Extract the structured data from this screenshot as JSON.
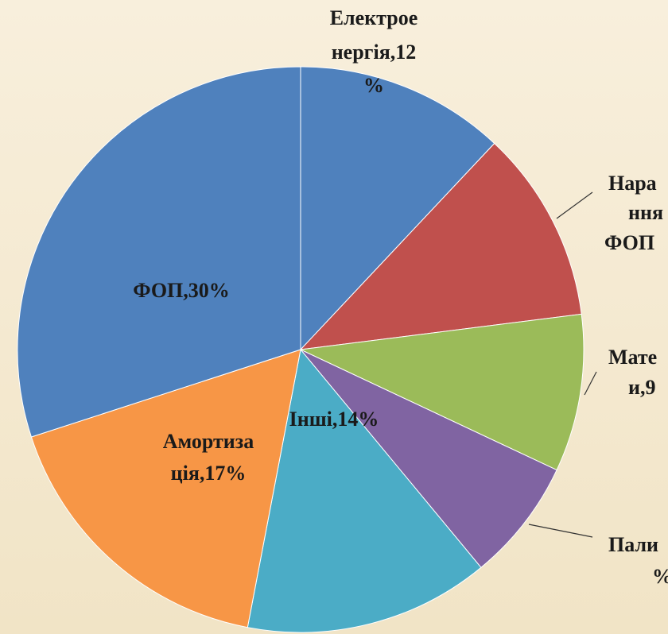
{
  "chart_data": {
    "type": "pie",
    "labels": [
      [
        "Електрое",
        "нергія,12",
        "%"
      ],
      [
        "Нара",
        "ння",
        "ФОП"
      ],
      [
        "Мате",
        "и,9"
      ],
      [
        "Пали",
        "%"
      ],
      [
        "Інші,14%"
      ],
      [
        "Амортиза",
        "ція,17%"
      ],
      [
        "ФОП,30%"
      ]
    ],
    "values": [
      12,
      11,
      9,
      7,
      14,
      17,
      30
    ],
    "colors": [
      "#4f81bd",
      "#c0504d",
      "#9bbb59",
      "#8064a2",
      "#4bacc6",
      "#f79646",
      "#4f81bd"
    ],
    "start_angle": 0,
    "direction": "clockwise"
  }
}
